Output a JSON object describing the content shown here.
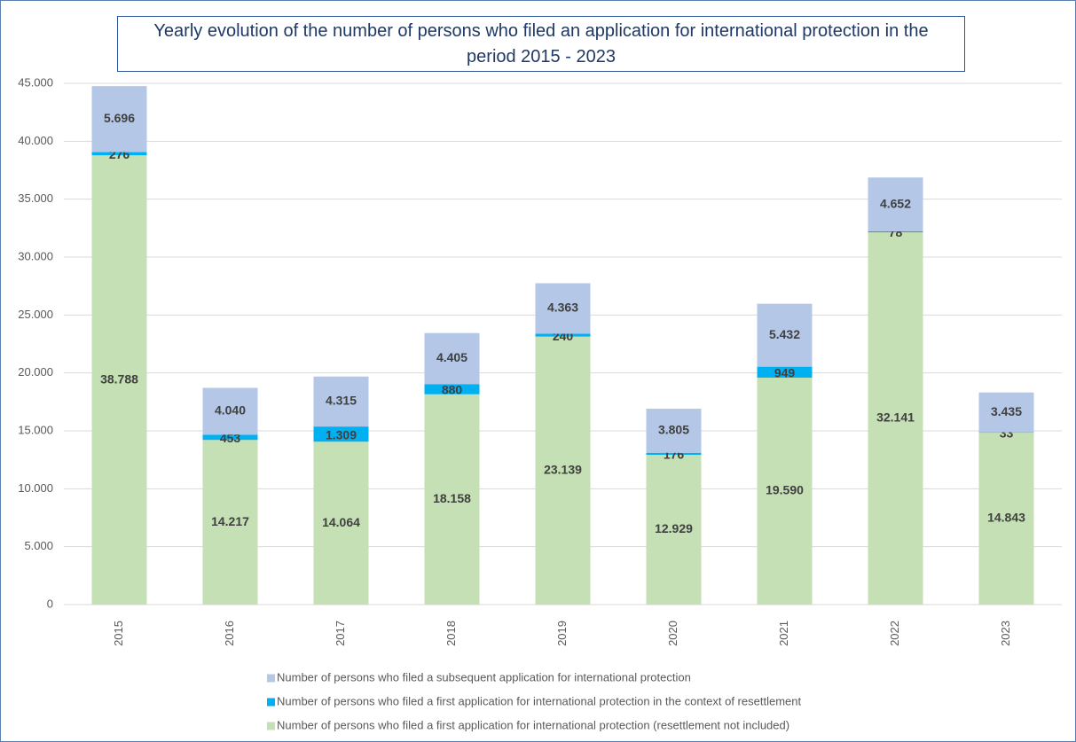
{
  "chart_data": {
    "type": "stacked-bar",
    "title": "Yearly evolution of the number of persons who filed an application for international protection in the period 2015 - 2023",
    "categories": [
      "2015",
      "2016",
      "2017",
      "2018",
      "2019",
      "2020",
      "2021",
      "2022",
      "2023"
    ],
    "series": [
      {
        "name": "Number of persons who filed a first application for international protection (resettlement not included)",
        "color": "#c5e0b4",
        "values": [
          38788,
          14217,
          14064,
          18158,
          23139,
          12929,
          19590,
          32141,
          14843
        ],
        "value_labels": [
          "38.788",
          "14.217",
          "14.064",
          "18.158",
          "23.139",
          "12.929",
          "19.590",
          "32.141",
          "14.843"
        ]
      },
      {
        "name": "Number of persons who filed a first application for international protection in the context of resettlement",
        "color": "#00b0f0",
        "values": [
          276,
          453,
          1309,
          880,
          240,
          176,
          949,
          78,
          33
        ],
        "value_labels": [
          "276",
          "453",
          "1.309",
          "880",
          "240",
          "176",
          "949",
          "78",
          "33"
        ]
      },
      {
        "name": "Number of persons who filed a subsequent application for international protection",
        "color": "#b4c7e7",
        "values": [
          5696,
          4040,
          4315,
          4405,
          4363,
          3805,
          5432,
          4652,
          3435
        ],
        "value_labels": [
          "5.696",
          "4.040",
          "4.315",
          "4.405",
          "4.363",
          "3.805",
          "5.432",
          "4.652",
          "3.435"
        ]
      }
    ],
    "ylim": [
      0,
      45000
    ],
    "yticks": [
      0,
      {
        "value": 5000,
        "label": "5.000"
      },
      {
        "value": 10000,
        "label": "10.000"
      },
      {
        "value": 15000,
        "label": "15.000"
      },
      {
        "value": 20000,
        "label": "20.000"
      },
      {
        "value": 25000,
        "label": "25.000"
      },
      {
        "value": 30000,
        "label": "30.000"
      },
      {
        "value": 35000,
        "label": "35.000"
      },
      {
        "value": 40000,
        "label": "40.000"
      },
      {
        "value": 45000,
        "label": "45.000"
      }
    ],
    "grid": true
  }
}
